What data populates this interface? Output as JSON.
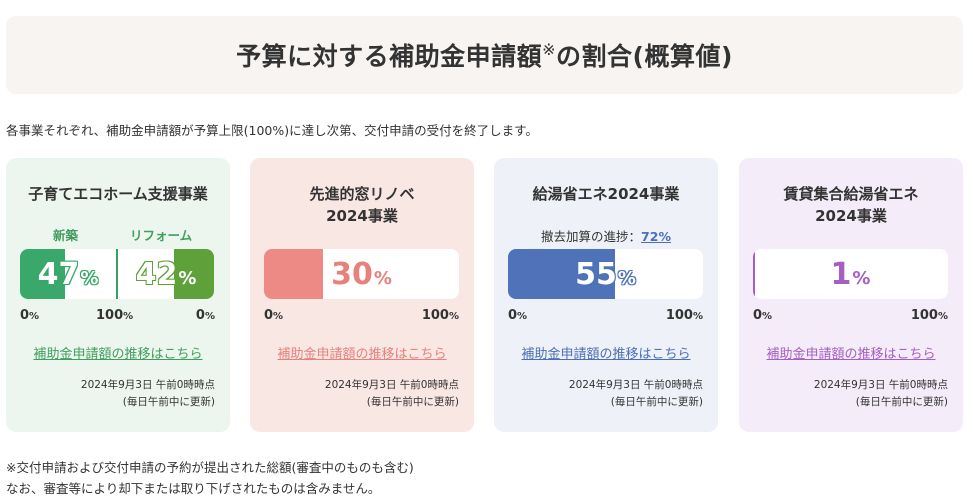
{
  "title": {
    "text": "予算に対する補助金申請額",
    "mark": "※",
    "suffix": "の割合(概算値)"
  },
  "intro": "各事業それぞれ、補助金申請額が予算上限(100%)に達し次第、交付申請の受付を終了します。",
  "scale": {
    "min": "0",
    "max": "100",
    "unit": "%"
  },
  "cards": [
    {
      "title_line1": "子育てエコホーム支援事業",
      "title_line2": "",
      "new_label": "新築",
      "new_value": "47",
      "new_fraction": 0.47,
      "reform_label": "リフォーム",
      "reform_value": "42",
      "reform_fraction": 0.42,
      "pct_unit": "%",
      "link": "補助金申請額の推移はこちら",
      "date": "2024年9月3日 午前0時時点",
      "update": "(毎日午前中に更新)",
      "colors": {
        "bg": "#ecf6ef",
        "new_fill": "#39a86a",
        "reform_fill": "#5ea03a",
        "accent": "#3f9e5b"
      }
    },
    {
      "title_line1": "先進的窓リノベ",
      "title_line2": "2024事業",
      "value": "30",
      "fraction": 0.3,
      "pct_unit": "%",
      "link": "補助金申請額の推移はこちら",
      "date": "2024年9月3日 午前0時時点",
      "update": "(毎日午前中に更新)",
      "colors": {
        "bg": "#f9e7e4",
        "fill": "#ee8a86",
        "accent": "#e8807b"
      }
    },
    {
      "title_line1": "給湯省エネ2024事業",
      "title_line2": "",
      "progress_label": "撤去加算の進捗：",
      "progress_value": "72%",
      "value": "55",
      "fraction": 0.55,
      "pct_unit": "%",
      "link": "補助金申請額の推移はこちら",
      "date": "2024年9月3日 午前0時時点",
      "update": "(毎日午前中に更新)",
      "colors": {
        "bg": "#eef1f7",
        "fill": "#4f72b8",
        "accent": "#4b6fb7"
      }
    },
    {
      "title_line1": "賃貸集合給湯省エネ",
      "title_line2": "2024事業",
      "value": "1",
      "fraction": 0.01,
      "pct_unit": "%",
      "link": "補助金申請額の推移はこちら",
      "date": "2024年9月3日 午前0時時点",
      "update": "(毎日午前中に更新)",
      "colors": {
        "bg": "#f4ecf8",
        "fill": "#a65ec4",
        "accent": "#a65ec4"
      }
    }
  ],
  "footnote_1": "※交付申請および交付申請の予約が提出された総額(審査中のものも含む)",
  "footnote_2": "なお、審査等により却下または取り下げされたものは含みません。"
}
